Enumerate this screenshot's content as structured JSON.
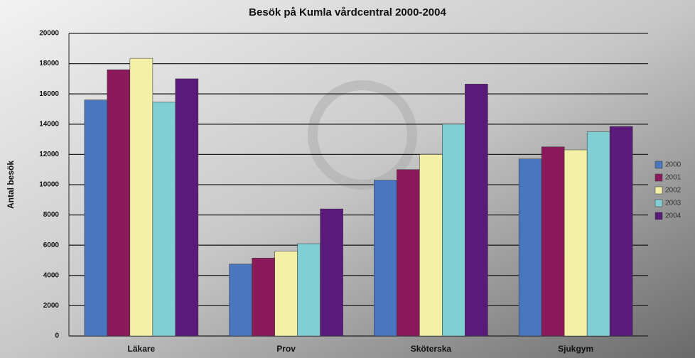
{
  "chart_data": {
    "type": "bar",
    "title": "Besök på Kumla vårdcentral 2000-2004",
    "y_label": "Antal besök",
    "categories": [
      "Läkare",
      "Prov",
      "Sköterska",
      "Sjukgym"
    ],
    "series": [
      {
        "name": "2000",
        "color": "#4a76c0",
        "values": [
          15600,
          4750,
          10300,
          11700
        ]
      },
      {
        "name": "2001",
        "color": "#8b1a5a",
        "values": [
          17600,
          5150,
          11000,
          12500
        ]
      },
      {
        "name": "2002",
        "color": "#f5f0a8",
        "values": [
          18350,
          5600,
          12000,
          12300
        ]
      },
      {
        "name": "2003",
        "color": "#7fcfd4",
        "values": [
          15450,
          6100,
          14000,
          13500
        ]
      },
      {
        "name": "2004",
        "color": "#5a1a7a",
        "values": [
          17000,
          8400,
          16650,
          13850
        ]
      }
    ],
    "ylim": [
      0,
      20000
    ],
    "yticks": [
      0,
      2000,
      4000,
      6000,
      8000,
      10000,
      12000,
      14000,
      16000,
      18000,
      20000
    ],
    "grid": true,
    "legend": "right"
  }
}
